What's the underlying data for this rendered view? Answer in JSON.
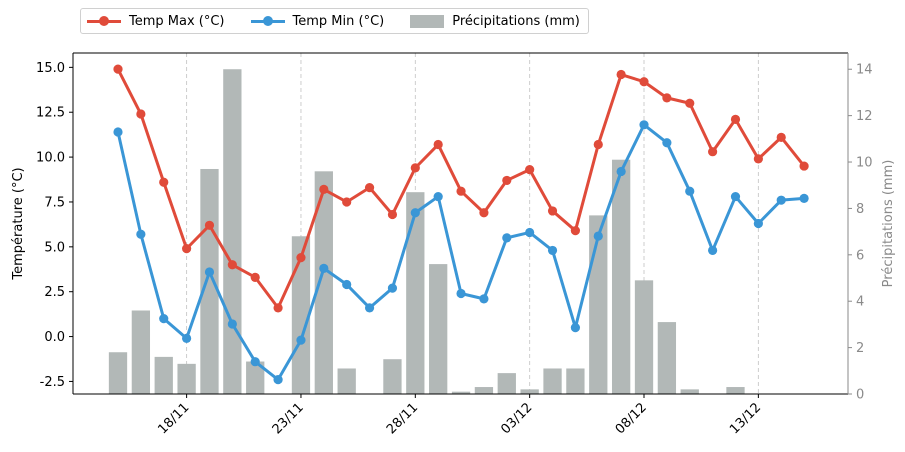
{
  "chart_data": {
    "type": "bar+line",
    "categories": [
      "16/11",
      "17/11",
      "18/11",
      "19/11",
      "20/11",
      "21/11",
      "22/11",
      "23/11",
      "24/11",
      "25/11",
      "26/11",
      "27/11",
      "28/11",
      "29/11",
      "30/11",
      "01/12",
      "02/12",
      "03/12",
      "04/12",
      "05/12",
      "06/12",
      "07/12",
      "08/12",
      "09/12",
      "10/12",
      "11/12",
      "12/12",
      "13/12",
      "14/12",
      "15/12",
      "16/12"
    ],
    "xtick_labels": [
      "18/11",
      "23/11",
      "28/11",
      "03/12",
      "08/12",
      "13/12"
    ],
    "xtick_indices": [
      3,
      8,
      13,
      18,
      23,
      28
    ],
    "series": [
      {
        "name": "Temp Max (°C)",
        "axis": "left",
        "color": "#e04b3a",
        "values": [
          14.9,
          12.4,
          8.6,
          4.9,
          6.2,
          4.0,
          3.3,
          1.6,
          4.4,
          8.2,
          7.5,
          8.3,
          6.8,
          9.4,
          10.7,
          8.1,
          6.9,
          8.7,
          9.3,
          7.0,
          5.9,
          10.7,
          14.6,
          14.2,
          13.3,
          13.0,
          10.3,
          12.1,
          9.9,
          11.1,
          9.5
        ]
      },
      {
        "name": "Temp Min (°C)",
        "axis": "left",
        "color": "#3a96d6",
        "values": [
          11.4,
          5.7,
          1.0,
          -0.1,
          3.6,
          0.7,
          -1.4,
          -2.4,
          -0.2,
          3.8,
          2.9,
          1.6,
          2.7,
          6.9,
          7.8,
          2.4,
          2.1,
          5.5,
          5.8,
          4.8,
          0.5,
          5.6,
          9.2,
          11.8,
          10.8,
          8.1,
          4.8,
          7.8,
          6.3,
          7.6,
          7.7
        ]
      },
      {
        "name": "Précipitations (mm)",
        "axis": "right",
        "type": "bar",
        "color": "#b2b8b7",
        "values": [
          1.8,
          3.6,
          1.6,
          1.3,
          9.7,
          14.0,
          1.4,
          0,
          6.8,
          9.6,
          1.1,
          0,
          1.5,
          8.7,
          5.6,
          0.1,
          0.3,
          0.9,
          0.2,
          1.1,
          1.1,
          7.7,
          10.1,
          4.9,
          3.1,
          0.2,
          0,
          0.3,
          0,
          0,
          0
        ]
      }
    ],
    "ylabel": "Température (°C)",
    "ylabel_right": "Précipitations (mm)",
    "ylim": [
      -3.2,
      15.8
    ],
    "yticks": [
      -2.5,
      0.0,
      2.5,
      5.0,
      7.5,
      10.0,
      12.5,
      15.0
    ],
    "ylim_right": [
      0,
      14.7
    ],
    "yticks_right": [
      0,
      2,
      4,
      6,
      8,
      10,
      12,
      14
    ],
    "grid": "vertical dashed at x ticks",
    "legend_position": "top-left above plot"
  },
  "legend": {
    "max_label": "Temp Max (°C)",
    "min_label": "Temp Min (°C)",
    "precip_label": "Précipitations (mm)"
  }
}
